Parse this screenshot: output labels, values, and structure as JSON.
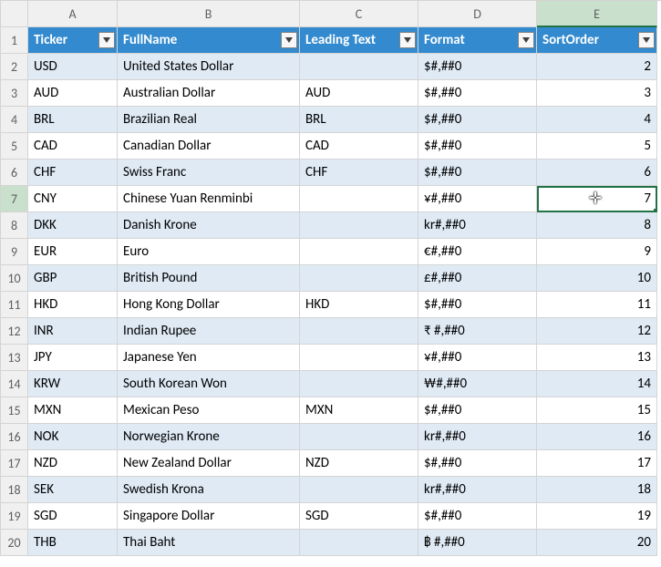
{
  "columns": {
    "letters": [
      "A",
      "B",
      "C",
      "D",
      "E"
    ]
  },
  "headers": [
    "Ticker",
    "FullName",
    "Leading Text",
    "Format",
    "SortOrder"
  ],
  "selected": {
    "col_index": 5,
    "row_number": 7
  },
  "rows": [
    {
      "n": 2,
      "ticker": "USD",
      "name": "United States Dollar",
      "lead": "",
      "fmt": "$#,##0",
      "sort": 2
    },
    {
      "n": 3,
      "ticker": "AUD",
      "name": "Australian Dollar",
      "lead": "AUD",
      "fmt": "$#,##0",
      "sort": 3
    },
    {
      "n": 4,
      "ticker": "BRL",
      "name": "Brazilian Real",
      "lead": "BRL",
      "fmt": "$#,##0",
      "sort": 4
    },
    {
      "n": 5,
      "ticker": "CAD",
      "name": "Canadian Dollar",
      "lead": "CAD",
      "fmt": "$#,##0",
      "sort": 5
    },
    {
      "n": 6,
      "ticker": "CHF",
      "name": "Swiss Franc",
      "lead": "CHF",
      "fmt": "$#,##0",
      "sort": 6
    },
    {
      "n": 7,
      "ticker": "CNY",
      "name": "Chinese Yuan Renminbi",
      "lead": "",
      "fmt": "¥#,##0",
      "sort": 7
    },
    {
      "n": 8,
      "ticker": "DKK",
      "name": "Danish Krone",
      "lead": "",
      "fmt": "kr#,##0",
      "sort": 8
    },
    {
      "n": 9,
      "ticker": "EUR",
      "name": "Euro",
      "lead": "",
      "fmt": "€#,##0",
      "sort": 9
    },
    {
      "n": 10,
      "ticker": "GBP",
      "name": "British Pound",
      "lead": "",
      "fmt": "£#,##0",
      "sort": 10
    },
    {
      "n": 11,
      "ticker": "HKD",
      "name": "Hong Kong Dollar",
      "lead": "HKD",
      "fmt": "$#,##0",
      "sort": 11
    },
    {
      "n": 12,
      "ticker": "INR",
      "name": "Indian Rupee",
      "lead": "",
      "fmt": "₹ #,##0",
      "sort": 12
    },
    {
      "n": 13,
      "ticker": "JPY",
      "name": "Japanese Yen",
      "lead": "",
      "fmt": "¥#,##0",
      "sort": 13
    },
    {
      "n": 14,
      "ticker": "KRW",
      "name": "South Korean Won",
      "lead": "",
      "fmt": "₩#,##0",
      "sort": 14
    },
    {
      "n": 15,
      "ticker": "MXN",
      "name": "Mexican Peso",
      "lead": "MXN",
      "fmt": "$#,##0",
      "sort": 15
    },
    {
      "n": 16,
      "ticker": "NOK",
      "name": "Norwegian Krone",
      "lead": "",
      "fmt": "kr#,##0",
      "sort": 16
    },
    {
      "n": 17,
      "ticker": "NZD",
      "name": "New Zealand Dollar",
      "lead": "NZD",
      "fmt": "$#,##0",
      "sort": 17
    },
    {
      "n": 18,
      "ticker": "SEK",
      "name": "Swedish Krona",
      "lead": "",
      "fmt": "kr#,##0",
      "sort": 18
    },
    {
      "n": 19,
      "ticker": "SGD",
      "name": "Singapore Dollar",
      "lead": "SGD",
      "fmt": "$#,##0",
      "sort": 19
    },
    {
      "n": 20,
      "ticker": "THB",
      "name": "Thai Baht",
      "lead": "",
      "fmt": "฿ #,##0",
      "sort": 20
    }
  ]
}
